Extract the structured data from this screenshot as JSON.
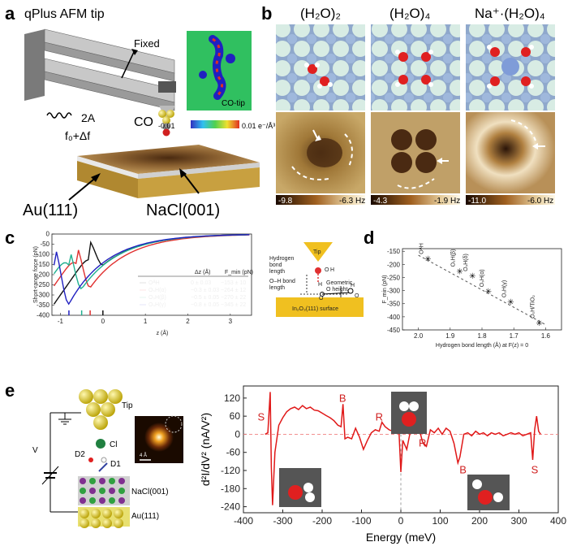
{
  "panels": {
    "a": {
      "label": "a",
      "title": "qPlus AFM tip",
      "fixed_label": "Fixed",
      "amplitude": "2A",
      "frequency": "f₀+Δf",
      "co_label": "CO",
      "co_tip_map": "CO-tip",
      "colorbar_min": "-0.01",
      "colorbar_max": "0.01 e⁻/Å³",
      "au_label": "Au(111)",
      "nacl_label": "NaCl(001)"
    },
    "b": {
      "label": "b",
      "titles": [
        "(H₂O)₂",
        "(H₂O)₄",
        "Na⁺·(H₂O)₄"
      ],
      "colorbars": [
        {
          "min": "-9.8",
          "max": "-6.3 Hz"
        },
        {
          "min": "-4.3",
          "max": "-1.9 Hz"
        },
        {
          "min": "-11.0",
          "max": "-6.0 Hz"
        }
      ]
    },
    "c": {
      "label": "c",
      "schematic": {
        "tip": "Tip",
        "o": "O",
        "h": "H",
        "hbond_lines": [
          "Hydrogen",
          "bond",
          "length"
        ],
        "oh_lines": [
          "O–H bond",
          "length"
        ],
        "geo_lines": [
          "Geometric",
          "O height"
        ],
        "surface": "In₂O₃(111) surface"
      }
    },
    "d": {
      "label": "d"
    },
    "e": {
      "label": "e",
      "tip": "Tip",
      "cl": "Cl",
      "v": "V",
      "d1": "D1",
      "d2": "D2",
      "nacl": "NaCl(001)",
      "au": "Au(111)",
      "scale": "4 Å"
    }
  },
  "chart_data": [
    {
      "type": "line",
      "title": "",
      "xlabel": "z (Å)",
      "ylabel": "Short-range force (pN)",
      "xlim": [
        -1.2,
        3.5
      ],
      "ylim": [
        -400,
        0
      ],
      "xticks": [
        "-1",
        "0",
        "1",
        "2",
        "3"
      ],
      "yticks": [
        "0",
        "-50",
        "-100",
        "-150",
        "-200",
        "-250",
        "-300",
        "-350",
        "-400"
      ],
      "legend_headers": [
        "Δz (Å)",
        "F_min (pN)"
      ],
      "series": [
        {
          "name": "OᴬH",
          "color": "#111111",
          "dz": "0 ± 0.03",
          "fmin": "−153 ± 10",
          "x_min": 0.0,
          "f_min": -153
        },
        {
          "name": "OₛH(α)",
          "color": "#e03030",
          "dz": "−0.3 ± 0.03",
          "fmin": "−264 ± 12",
          "x_min": -0.3,
          "f_min": -264
        },
        {
          "name": "OₛH(β)",
          "color": "#20b090",
          "dz": "−0.5 ± 0.05",
          "fmin": "−270 ± 22",
          "x_min": -0.5,
          "f_min": -270
        },
        {
          "name": "OₛH(γ)",
          "color": "#2020c0",
          "dz": "−0.8 ± 0.05",
          "fmin": "−345 ± 22",
          "x_min": -0.8,
          "f_min": -345
        }
      ]
    },
    {
      "type": "scatter",
      "title": "",
      "xlabel": "Hydrogen bond length (Å) at F(z) = 0",
      "ylabel": "F_min (pN)",
      "xlim": [
        2.05,
        1.55
      ],
      "ylim": [
        -450,
        -140
      ],
      "xticks": [
        2.0,
        1.9,
        1.8,
        1.7,
        1.6
      ],
      "yticks": [
        -150,
        -200,
        -250,
        -300,
        -350,
        -400,
        -450
      ],
      "points": [
        {
          "label": "OᴬH",
          "x": 1.97,
          "y": -180
        },
        {
          "label": "OₛH(β)",
          "x": 1.87,
          "y": -228
        },
        {
          "label": "OₛH(δ)",
          "x": 1.83,
          "y": -245
        },
        {
          "label": "OₛH(α)",
          "x": 1.78,
          "y": -305
        },
        {
          "label": "OₛH(γ)",
          "x": 1.71,
          "y": -345
        },
        {
          "label": "OₛH/TiO₂",
          "x": 1.62,
          "y": -425
        }
      ],
      "trendline": [
        [
          2.0,
          -165
        ],
        [
          1.6,
          -430
        ]
      ]
    },
    {
      "type": "line",
      "title": "",
      "xlabel": "Energy (meV)",
      "ylabel": "d²I/dV² (nA/V²)",
      "xlim": [
        -400,
        400
      ],
      "ylim": [
        -260,
        160
      ],
      "xticks": [
        -400,
        -300,
        -200,
        -100,
        0,
        100,
        200,
        300,
        400
      ],
      "yticks": [
        120,
        60,
        0,
        -60,
        -120,
        -180,
        -240
      ],
      "color": "#e01818",
      "annotations": [
        {
          "text": "S",
          "x": -355,
          "y": 45
        },
        {
          "text": "B",
          "x": -148,
          "y": 107
        },
        {
          "text": "R",
          "x": -55,
          "y": 45
        },
        {
          "text": "R",
          "x": 55,
          "y": -40
        },
        {
          "text": "B",
          "x": 158,
          "y": -130
        },
        {
          "text": "S",
          "x": 340,
          "y": -130
        }
      ],
      "points": [
        [
          -345,
          0
        ],
        [
          -338,
          5
        ],
        [
          -332,
          140
        ],
        [
          -329,
          -110
        ],
        [
          -326,
          -235
        ],
        [
          -320,
          -60
        ],
        [
          -310,
          30
        ],
        [
          -300,
          55
        ],
        [
          -290,
          75
        ],
        [
          -280,
          85
        ],
        [
          -270,
          90
        ],
        [
          -260,
          82
        ],
        [
          -250,
          95
        ],
        [
          -240,
          85
        ],
        [
          -230,
          90
        ],
        [
          -220,
          80
        ],
        [
          -210,
          78
        ],
        [
          -200,
          70
        ],
        [
          -190,
          62
        ],
        [
          -180,
          55
        ],
        [
          -170,
          45
        ],
        [
          -160,
          30
        ],
        [
          -152,
          25
        ],
        [
          -147,
          100
        ],
        [
          -142,
          -15
        ],
        [
          -135,
          -10
        ],
        [
          -125,
          -15
        ],
        [
          -115,
          20
        ],
        [
          -105,
          -10
        ],
        [
          -95,
          -50
        ],
        [
          -85,
          -20
        ],
        [
          -75,
          5
        ],
        [
          -65,
          15
        ],
        [
          -55,
          10
        ],
        [
          -48,
          40
        ],
        [
          -40,
          25
        ],
        [
          -30,
          15
        ],
        [
          -20,
          10
        ],
        [
          -10,
          5
        ],
        [
          -5,
          15
        ],
        [
          0,
          -125
        ],
        [
          5,
          -20
        ],
        [
          15,
          -50
        ],
        [
          25,
          15
        ],
        [
          35,
          5
        ],
        [
          45,
          25
        ],
        [
          55,
          -25
        ],
        [
          65,
          -40
        ],
        [
          75,
          15
        ],
        [
          85,
          5
        ],
        [
          95,
          20
        ],
        [
          105,
          0
        ],
        [
          115,
          20
        ],
        [
          125,
          10
        ],
        [
          135,
          -30
        ],
        [
          145,
          -95
        ],
        [
          150,
          -75
        ],
        [
          160,
          0
        ],
        [
          170,
          5
        ],
        [
          180,
          -5
        ],
        [
          190,
          10
        ],
        [
          200,
          0
        ],
        [
          210,
          5
        ],
        [
          220,
          -5
        ],
        [
          230,
          5
        ],
        [
          240,
          0
        ],
        [
          250,
          5
        ],
        [
          260,
          -5
        ],
        [
          270,
          0
        ],
        [
          280,
          5
        ],
        [
          290,
          0
        ],
        [
          300,
          5
        ],
        [
          310,
          -5
        ],
        [
          320,
          0
        ],
        [
          330,
          5
        ],
        [
          335,
          -85
        ],
        [
          340,
          15
        ],
        [
          345,
          60
        ],
        [
          350,
          10
        ],
        [
          355,
          0
        ]
      ]
    }
  ]
}
